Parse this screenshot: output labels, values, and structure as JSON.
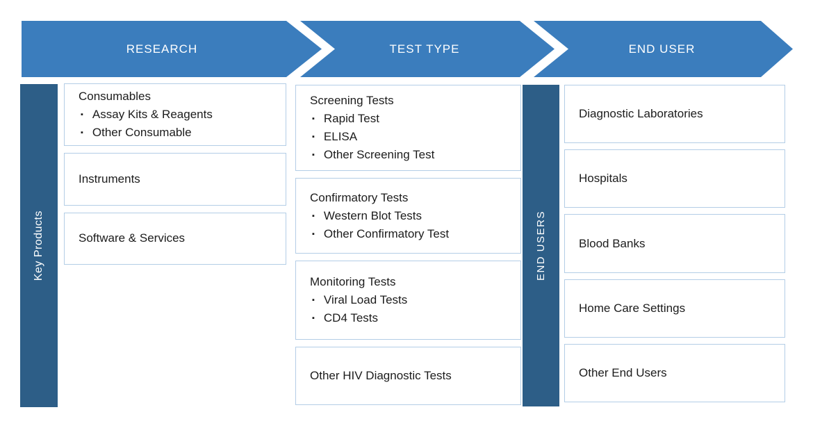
{
  "colors": {
    "banner_blue": "#3b7dbd",
    "rail_blue": "#2d5e87",
    "box_border": "#b3cde6",
    "box_text": "#1c1c1c",
    "banner_text": "#ffffff"
  },
  "bullet_icon": "▪",
  "banner": {
    "segments": [
      {
        "label": "RESEARCH"
      },
      {
        "label": "TEST TYPE"
      },
      {
        "label": "END USER"
      }
    ]
  },
  "rails": {
    "left": {
      "label": "Key Products"
    },
    "middle": {
      "label": "END USERS"
    }
  },
  "columns": {
    "research": [
      {
        "title": "Consumables",
        "items": [
          "Assay Kits & Reagents",
          "Other Consumable"
        ]
      },
      {
        "title": "Instruments",
        "items": []
      },
      {
        "title": "Software & Services",
        "items": []
      }
    ],
    "test_type": [
      {
        "title": "Screening Tests",
        "items": [
          "Rapid Test",
          "ELISA",
          "Other Screening Test"
        ]
      },
      {
        "title": "Confirmatory Tests",
        "items": [
          "Western Blot Tests",
          "Other Confirmatory Test"
        ]
      },
      {
        "title": "Monitoring Tests",
        "items": [
          "Viral Load Tests",
          "CD4 Tests"
        ]
      },
      {
        "title": "Other HIV Diagnostic Tests",
        "items": []
      }
    ],
    "end_user": [
      {
        "title": "Diagnostic Laboratories",
        "items": []
      },
      {
        "title": "Hospitals",
        "items": []
      },
      {
        "title": "Blood Banks",
        "items": []
      },
      {
        "title": "Home Care Settings",
        "items": []
      },
      {
        "title": "Other End Users",
        "items": []
      }
    ]
  }
}
